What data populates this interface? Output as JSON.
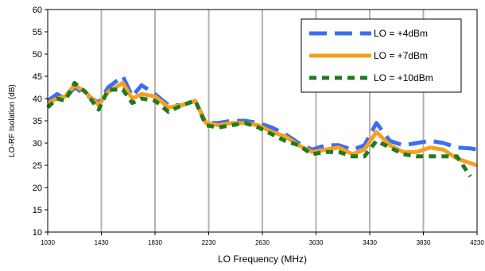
{
  "chart_data": {
    "type": "line",
    "title": "",
    "xlabel": "LO Frequency (MHz)",
    "ylabel": "LO-RF Isolation (dB)",
    "xlim": [
      1030,
      4230
    ],
    "ylim": [
      10,
      60
    ],
    "x_ticks": [
      1030,
      1430,
      1830,
      2230,
      2630,
      3030,
      3430,
      3830,
      4230
    ],
    "y_ticks": [
      10,
      15,
      20,
      25,
      30,
      35,
      40,
      45,
      50,
      55,
      60
    ],
    "grid": "vertical",
    "legend_position": "top-right",
    "series": [
      {
        "name": "LO = +4dBm",
        "color": "#3d6ef0",
        "dash": "long-dash",
        "x": [
          1030,
          1100,
          1160,
          1230,
          1310,
          1410,
          1480,
          1590,
          1660,
          1730,
          1830,
          1930,
          2030,
          2130,
          2210,
          2300,
          2400,
          2500,
          2600,
          2700,
          2800,
          2900,
          3000,
          3100,
          3200,
          3300,
          3390,
          3480,
          3580,
          3680,
          3780,
          3880,
          3980,
          4080,
          4180,
          4230
        ],
        "y": [
          39.5,
          41,
          40,
          42.5,
          41,
          39,
          42.5,
          45,
          40.5,
          43,
          41,
          38.5,
          38.5,
          39.5,
          34.5,
          34.5,
          35,
          35,
          34.5,
          33.5,
          32,
          30,
          28.5,
          29.5,
          29.5,
          28.5,
          29.5,
          34.5,
          30.5,
          29.5,
          30,
          30.5,
          30,
          29,
          28.8,
          28.5
        ]
      },
      {
        "name": "LO = +7dBm",
        "color": "#f7a020",
        "dash": "solid",
        "x": [
          1030,
          1100,
          1160,
          1230,
          1310,
          1410,
          1480,
          1590,
          1660,
          1730,
          1830,
          1930,
          2030,
          2130,
          2210,
          2300,
          2400,
          2500,
          2600,
          2700,
          2800,
          2900,
          3000,
          3100,
          3200,
          3300,
          3390,
          3480,
          3580,
          3680,
          3780,
          3880,
          3980,
          4080,
          4180,
          4230
        ],
        "y": [
          39,
          40,
          40.5,
          43,
          41.5,
          38.5,
          41.5,
          43.5,
          40,
          41,
          40.5,
          38,
          38.5,
          39.5,
          34.5,
          34,
          34.5,
          34.5,
          34,
          32.5,
          31.5,
          29.5,
          28,
          28.5,
          29,
          27.5,
          28.5,
          32.5,
          29.5,
          28,
          28,
          29,
          28.5,
          26.5,
          25.5,
          25
        ]
      },
      {
        "name": "LO = +10dBm",
        "color": "#1f7a1f",
        "dash": "short-dash",
        "x": [
          1030,
          1100,
          1160,
          1230,
          1310,
          1410,
          1480,
          1590,
          1660,
          1730,
          1830,
          1930,
          2030,
          2130,
          2210,
          2300,
          2400,
          2500,
          2600,
          2700,
          2800,
          2900,
          3000,
          3100,
          3200,
          3300,
          3390,
          3480,
          3580,
          3680,
          3780,
          3880,
          3980,
          4080,
          4180
        ],
        "y": [
          38,
          40,
          39.5,
          43.5,
          41.5,
          37.5,
          42,
          42,
          39,
          40,
          39.5,
          37,
          38.5,
          39.5,
          34,
          33.5,
          34,
          34.5,
          33.5,
          32,
          30.5,
          29.5,
          27.5,
          28,
          28,
          27,
          27,
          30.5,
          29,
          27.5,
          27,
          27,
          27,
          27,
          22.5
        ]
      }
    ]
  }
}
